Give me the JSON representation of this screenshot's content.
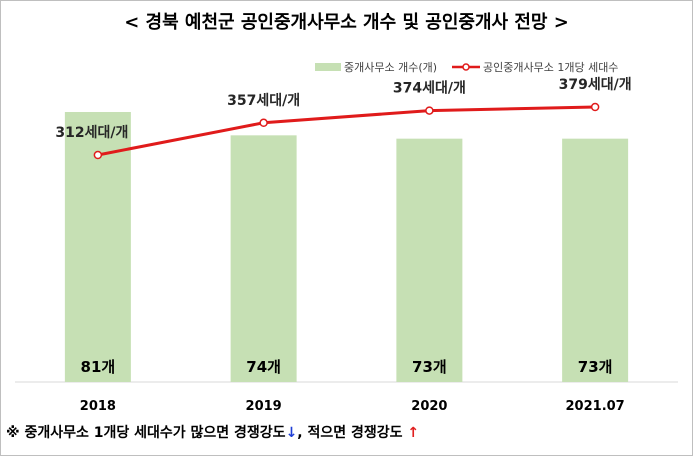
{
  "chart_data": {
    "type": "bar",
    "title": "< 경북 예천군 공인중개사무소 개수 및 공인중개사 전망 >",
    "categories": [
      "2018",
      "2019",
      "2020",
      "2021.07"
    ],
    "series": [
      {
        "name": "중개사무소 개수(개)",
        "type": "bar",
        "values": [
          81,
          74,
          73,
          73
        ],
        "labels": [
          "81개",
          "74개",
          "73개",
          "73개"
        ],
        "color": "#c6e0b4"
      },
      {
        "name": "공인중개사무소 1개당 세대수",
        "type": "line",
        "values": [
          312,
          357,
          374,
          379
        ],
        "labels": [
          "312세대/개",
          "357세대/개",
          "374세대/개",
          "379세대/개"
        ],
        "color": "#e01b1b"
      }
    ],
    "legend": "top-right",
    "grid": false
  },
  "note": {
    "prefix": "※ 중개사무소 1개당 세대수가 많으면 경쟁강도",
    "down_arrow": "↓",
    "middle": ", 적으면 경쟁강도 ",
    "up_arrow": "↑"
  }
}
